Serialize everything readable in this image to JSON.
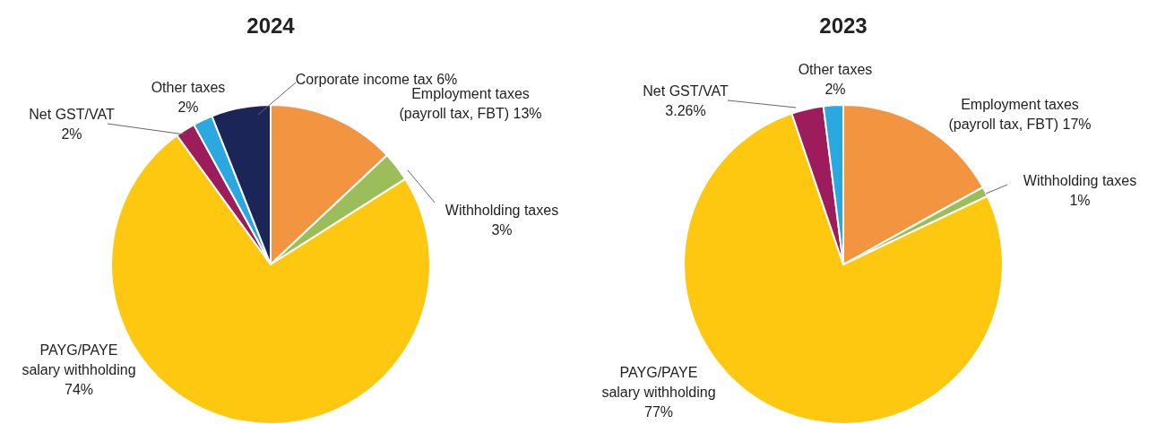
{
  "chart_data": [
    {
      "type": "pie",
      "title": "2024",
      "categories": [
        "Employment taxes (payroll tax, FBT)",
        "Withholding taxes",
        "PAYG/PAYE salary withholding",
        "Net GST/VAT",
        "Other taxes",
        "Corporate income tax"
      ],
      "values": [
        13,
        3,
        74,
        2,
        2,
        6
      ],
      "value_labels": [
        "13%",
        "3%",
        "74%",
        "2%",
        "2%",
        "6%"
      ],
      "colors": [
        "#f39440",
        "#9cbe5a",
        "#fdc80f",
        "#9c1c5c",
        "#2aa8df",
        "#1c2557"
      ]
    },
    {
      "type": "pie",
      "title": "2023",
      "categories": [
        "Employment taxes (payroll tax, FBT)",
        "Withholding taxes",
        "PAYG/PAYE salary withholding",
        "Net GST/VAT",
        "Other taxes"
      ],
      "values": [
        17,
        1,
        77,
        3.26,
        2
      ],
      "value_labels": [
        "17%",
        "1%",
        "77%",
        "3.26%",
        "2%"
      ],
      "colors": [
        "#f39440",
        "#9cbe5a",
        "#fdc80f",
        "#9c1c5c",
        "#2aa8df"
      ]
    }
  ]
}
